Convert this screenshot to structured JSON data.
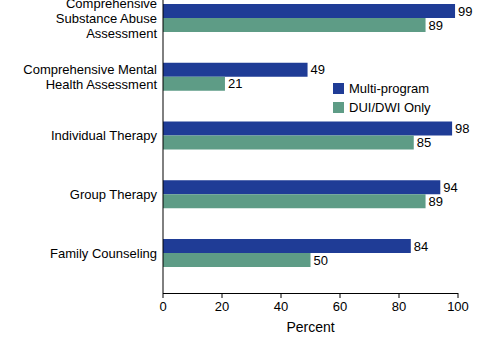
{
  "chart_data": {
    "type": "bar",
    "orientation": "horizontal",
    "categories": [
      "Comprehensive Substance Abuse Assessment",
      "Comprehensive Mental Health Assessment",
      "Individual Therapy",
      "Group Therapy",
      "Family Counseling"
    ],
    "series": [
      {
        "name": "Multi-program",
        "color": "#1f3c96",
        "values": [
          99,
          49,
          98,
          94,
          84
        ]
      },
      {
        "name": "DUI/DWI Only",
        "color": "#5e9c86",
        "values": [
          89,
          21,
          85,
          89,
          50
        ]
      }
    ],
    "xlabel": "Percent",
    "xlim": [
      0,
      100
    ],
    "xticks": [
      0,
      20,
      40,
      60,
      80,
      100
    ],
    "data_labels": true,
    "legend": "right",
    "grid": false
  }
}
